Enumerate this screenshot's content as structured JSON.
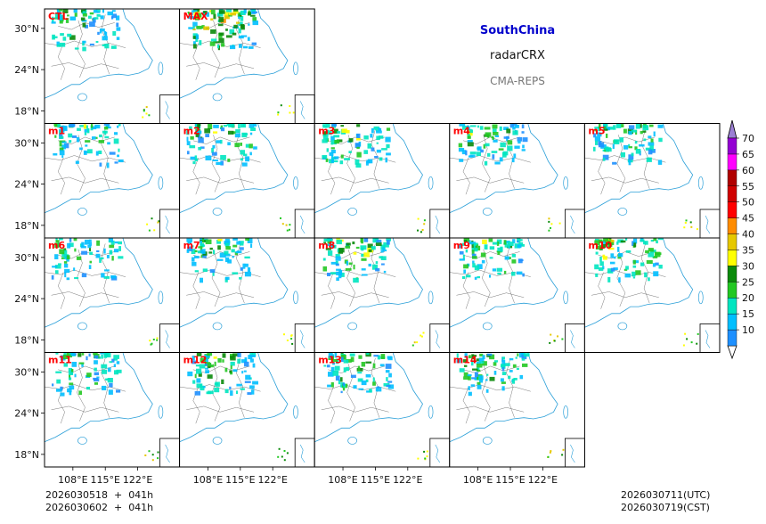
{
  "header": {
    "region": "SouthChina",
    "variable": "radarCRX",
    "system": "CMA-REPS",
    "region_color": "#0000cc",
    "system_color": "#777777"
  },
  "footer": {
    "init_line1": "2026030518  +  041h",
    "init_line2": "2026030602  +  041h",
    "valid_utc": "2026030711(UTC)",
    "valid_cst": "2026030719(CST)"
  },
  "chart_data": {
    "type": "heatmap",
    "title": "radarCRX",
    "panels": [
      {
        "label": "CTL",
        "intensity": 0.55
      },
      {
        "label": "MAX",
        "intensity": 1.0
      },
      {
        "label": "m1",
        "intensity": 0.5
      },
      {
        "label": "m2",
        "intensity": 0.6
      },
      {
        "label": "m3",
        "intensity": 0.65
      },
      {
        "label": "m4",
        "intensity": 0.55
      },
      {
        "label": "m5",
        "intensity": 0.6
      },
      {
        "label": "m6",
        "intensity": 0.5
      },
      {
        "label": "m7",
        "intensity": 0.55
      },
      {
        "label": "m8",
        "intensity": 0.65
      },
      {
        "label": "m9",
        "intensity": 0.6
      },
      {
        "label": "m10",
        "intensity": 0.7
      },
      {
        "label": "m11",
        "intensity": 0.55
      },
      {
        "label": "m12",
        "intensity": 0.6
      },
      {
        "label": "m13",
        "intensity": 0.55
      },
      {
        "label": "m14",
        "intensity": 0.6
      }
    ],
    "panel_label_color": "#ff0000",
    "x_ticks": [
      "108°E",
      "115°E",
      "122°E"
    ],
    "y_ticks": [
      "30°N",
      "24°N",
      "18°N"
    ],
    "colorbar": {
      "levels": [
        10,
        15,
        20,
        25,
        30,
        35,
        40,
        45,
        50,
        55,
        60,
        65,
        70
      ],
      "colors": [
        "#1e90ff",
        "#00bfff",
        "#00e5c0",
        "#22c822",
        "#0a8a0a",
        "#ffff00",
        "#e6c800",
        "#ff8c00",
        "#ff0000",
        "#d00000",
        "#b00000",
        "#ff00ff",
        "#9400d3",
        "#9b7fd4"
      ],
      "extend": "both"
    }
  }
}
